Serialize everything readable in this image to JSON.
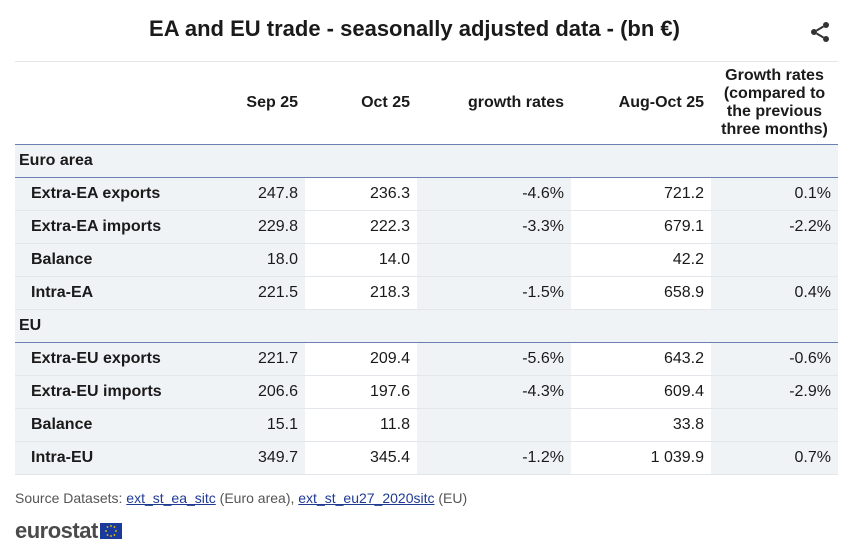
{
  "title": "EA and EU trade - seasonally adjusted data - (bn €)",
  "colors": {
    "header_rule": "#6b7fb3",
    "shade": "#f0f3f5",
    "link": "#1f3a93"
  },
  "icons": {
    "share": "share-icon",
    "flag": "eu-flag-icon"
  },
  "table": {
    "columns": [
      "",
      "Sep 25",
      "Oct 25",
      "growth rates",
      "Aug-Oct 25",
      "Growth rates (compared to the previous three months)"
    ],
    "growth2_lines": [
      "Growth rates",
      "(compared to",
      "the previous",
      "three months)"
    ],
    "sections": [
      {
        "name": "Euro area",
        "rows": [
          {
            "label": "Extra-EA exports",
            "values": [
              "247.8",
              "236.3",
              "-4.6%",
              "721.2",
              "0.1%"
            ]
          },
          {
            "label": "Extra-EA imports",
            "values": [
              "229.8",
              "222.3",
              "-3.3%",
              "679.1",
              "-2.2%"
            ]
          },
          {
            "label": "Balance",
            "values": [
              "18.0",
              "14.0",
              "",
              "42.2",
              ""
            ]
          },
          {
            "label": "Intra-EA",
            "values": [
              "221.5",
              "218.3",
              "-1.5%",
              "658.9",
              "0.4%"
            ]
          }
        ]
      },
      {
        "name": "EU",
        "rows": [
          {
            "label": "Extra-EU exports",
            "values": [
              "221.7",
              "209.4",
              "-5.6%",
              "643.2",
              "-0.6%"
            ]
          },
          {
            "label": "Extra-EU imports",
            "values": [
              "206.6",
              "197.6",
              "-4.3%",
              "609.4",
              "-2.9%"
            ]
          },
          {
            "label": "Balance",
            "values": [
              "15.1",
              "11.8",
              "",
              "33.8",
              ""
            ]
          },
          {
            "label": "Intra-EU",
            "values": [
              "349.7",
              "345.4",
              "-1.2%",
              "1 039.9",
              "0.7%"
            ]
          }
        ]
      }
    ]
  },
  "source": {
    "prefix": "Source Datasets: ",
    "link1": "ext_st_ea_sitc",
    "mid": " (Euro area), ",
    "link2": "ext_st_eu27_2020sitc",
    "suffix": " (EU)"
  },
  "logo": "eurostat"
}
